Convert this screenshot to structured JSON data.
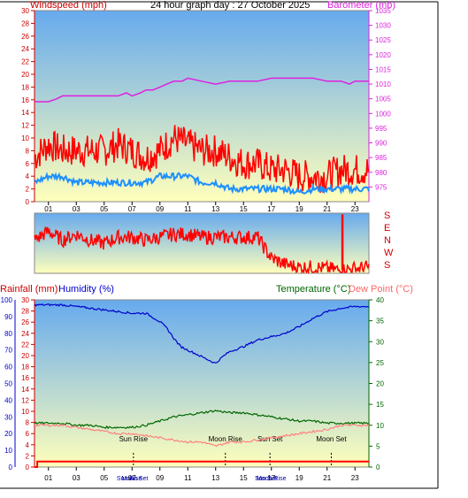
{
  "chart_data": [
    {
      "type": "line",
      "title": "24 hour graph day : 27 October 2025",
      "left_axis_label": "Windspeed (mph)",
      "right_axis_label": "Barometer (mb)",
      "x_ticks": [
        "01",
        "03",
        "05",
        "07",
        "09",
        "11",
        "13",
        "15",
        "17",
        "19",
        "21",
        "23"
      ],
      "x_range": [
        0,
        24
      ],
      "left_range": [
        0,
        30
      ],
      "left_ticks": [
        "0",
        "2",
        "4",
        "6",
        "8",
        "10",
        "12",
        "14",
        "16",
        "18",
        "20",
        "22",
        "24",
        "26",
        "28",
        "30"
      ],
      "right_range": [
        970,
        1035
      ],
      "right_ticks": [
        "975",
        "980",
        "985",
        "990",
        "995",
        "1000",
        "1005",
        "1010",
        "1015",
        "1020",
        "1025",
        "1030",
        "1035"
      ],
      "series": [
        {
          "role": "barometer",
          "color": "#e020e0",
          "x": [
            0,
            0.5,
            1,
            1.6,
            2,
            3,
            4,
            5,
            6,
            6.6,
            7,
            7.6,
            8,
            8.5,
            9,
            9.5,
            10,
            10.6,
            11,
            12,
            13,
            14,
            15,
            16,
            17,
            18,
            19,
            20,
            21,
            22,
            22.6,
            23,
            23.5,
            24
          ],
          "y": [
            1004,
            1004,
            1004,
            1005,
            1006,
            1006,
            1006,
            1006,
            1006,
            1007,
            1006,
            1007,
            1008,
            1008,
            1009,
            1010,
            1011,
            1011,
            1012,
            1011,
            1010,
            1011,
            1011,
            1011,
            1012,
            1012,
            1012,
            1012,
            1011,
            1011,
            1010,
            1011,
            1011,
            1011
          ]
        },
        {
          "role": "gust",
          "color": "#ff0000",
          "x": [
            0,
            1,
            2,
            3,
            4,
            5,
            6,
            7,
            8,
            9,
            10,
            11,
            12,
            13,
            14,
            15,
            16,
            17,
            18,
            19,
            20,
            21,
            22,
            23,
            24
          ],
          "y": [
            7,
            9,
            8,
            8,
            8,
            8,
            9,
            8,
            7,
            8,
            10,
            9,
            8,
            8,
            7,
            6,
            6,
            5,
            5,
            4,
            4,
            4,
            5,
            5,
            5
          ]
        },
        {
          "role": "average",
          "color": "#1e90ff",
          "x": [
            0,
            1,
            2,
            3,
            4,
            5,
            6,
            7,
            8,
            9,
            10,
            11,
            12,
            13,
            14,
            15,
            16,
            17,
            18,
            19,
            20,
            21,
            22,
            23,
            24
          ],
          "y": [
            3,
            4,
            4,
            3,
            3,
            3,
            3,
            3,
            3,
            4,
            4,
            4,
            3,
            3,
            2,
            2,
            2,
            2,
            2,
            1.5,
            2,
            2,
            2,
            2,
            2
          ]
        }
      ]
    },
    {
      "type": "line",
      "y_labels": [
        "S",
        "E",
        "N",
        "W",
        "S"
      ],
      "x_range": [
        0,
        24
      ],
      "series": [
        {
          "role": "wind direction",
          "color": "#ff0000",
          "x": [
            0,
            1,
            2,
            3,
            4,
            5,
            6,
            7,
            8,
            9,
            10,
            11,
            12,
            13,
            14,
            15,
            16,
            17,
            18,
            19,
            20,
            21,
            22,
            23,
            24
          ],
          "y": [
            0.55,
            0.7,
            0.55,
            0.65,
            0.55,
            0.5,
            0.6,
            0.6,
            0.55,
            0.6,
            0.65,
            0.65,
            0.6,
            0.6,
            0.6,
            0.6,
            0.6,
            0.25,
            0.15,
            0.1,
            0.1,
            0.08,
            0.05,
            0.08,
            0.1
          ]
        }
      ]
    },
    {
      "type": "line",
      "left_axis_label_1": "Rainfall (mm)",
      "left_axis_label_2": "Humidity (%)",
      "right_axis_label_1": "Temperature (°C)",
      "right_axis_label_2": "Dew Point (°C)",
      "x_ticks": [
        "01",
        "03",
        "05",
        "07",
        "09",
        "11",
        "13",
        "15",
        "17",
        "19",
        "21",
        "23"
      ],
      "x_range": [
        0,
        24
      ],
      "humidity_ticks": [
        "0",
        "10",
        "20",
        "30",
        "40",
        "50",
        "60",
        "70",
        "80",
        "90",
        "100"
      ],
      "humidity_range": [
        0,
        100
      ],
      "rain_ticks": [
        "0",
        "2",
        "4",
        "6",
        "8",
        "10",
        "12",
        "14",
        "16",
        "18",
        "20",
        "22",
        "24",
        "26",
        "28",
        "30"
      ],
      "rain_range": [
        0,
        30
      ],
      "temp_ticks": [
        "0",
        "5",
        "10",
        "15",
        "20",
        "25",
        "30",
        "35",
        "40"
      ],
      "temp_range": [
        0,
        40
      ],
      "series": [
        {
          "role": "humidity",
          "color": "#0000cc",
          "x": [
            0,
            1,
            2,
            3,
            4,
            5,
            6,
            7,
            8,
            9,
            9.5,
            10,
            10.5,
            11,
            12,
            12.5,
            13,
            13.5,
            14,
            15,
            16,
            17,
            18,
            19,
            20,
            21,
            22,
            23,
            24
          ],
          "y": [
            97,
            97,
            97,
            96,
            95,
            94,
            93,
            92,
            92,
            87,
            83,
            77,
            72,
            70,
            66,
            64,
            62,
            66,
            69,
            72,
            76,
            78,
            80,
            84,
            89,
            93,
            95,
            96,
            96
          ]
        },
        {
          "role": "temperature",
          "color": "#006600",
          "x": [
            0,
            1,
            2,
            3,
            4,
            5,
            6,
            7,
            8,
            9,
            10,
            11,
            12,
            13,
            14,
            15,
            16,
            17,
            18,
            19,
            20,
            21,
            22,
            23,
            24
          ],
          "y": [
            10.5,
            10.5,
            10.5,
            10,
            10,
            9.5,
            9.5,
            9.5,
            10,
            11,
            12,
            12.5,
            13,
            13.5,
            13,
            13,
            12.5,
            12,
            11.5,
            11,
            11,
            10.5,
            10.5,
            10.5,
            10.5
          ]
        },
        {
          "role": "dew point",
          "color": "#ff8080",
          "x": [
            0,
            1,
            2,
            3,
            4,
            5,
            6,
            7,
            8,
            9,
            10,
            11,
            12,
            13,
            14,
            15,
            16,
            17,
            18,
            19,
            20,
            21,
            22,
            23,
            24
          ],
          "y": [
            10,
            10,
            10,
            9.5,
            9,
            8.5,
            8,
            8,
            7.5,
            7,
            6.5,
            6,
            6,
            5,
            6,
            6,
            6.5,
            7,
            7.5,
            8,
            8.5,
            9,
            10,
            10,
            10
          ]
        },
        {
          "role": "rainfall",
          "color": "#ff0000",
          "x": [
            0,
            0.2,
            0.2,
            24
          ],
          "y": [
            0,
            0,
            1,
            1
          ]
        }
      ],
      "annotations": [
        {
          "text": "Sun Rise",
          "at": 7.1
        },
        {
          "text": "Sun Set",
          "at": 16.9
        },
        {
          "text": "Moon Rise",
          "at": 13.7
        },
        {
          "text": "Moon Set",
          "at": 21.3
        }
      ],
      "bottom_labels": [
        {
          "text": "Sun Rise",
          "at": 6.8
        },
        {
          "text": "Moon Set",
          "at": 7.2
        },
        {
          "text": "Sun Set",
          "at": 16.6
        },
        {
          "text": "Moon Rise",
          "at": 17.0
        }
      ]
    }
  ],
  "colors": {
    "sky_top": "#66aaee",
    "sky_bottom": "#ffffbb",
    "windspeed_axis": "#cc0000",
    "barometer_axis": "#dd22dd",
    "humidity_axis": "#0000cc",
    "temperature_axis": "#006600",
    "dewpoint_axis": "#ff6666"
  }
}
